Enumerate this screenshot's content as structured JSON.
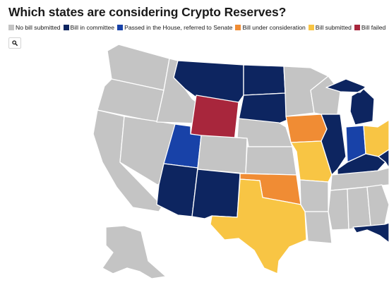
{
  "title": "Which states are considering Crypto Reserves?",
  "legend": [
    {
      "key": "none",
      "label": "No bill submitted",
      "color": "#c4c4c4"
    },
    {
      "key": "committee",
      "label": "Bill in committee",
      "color": "#0d2560"
    },
    {
      "key": "passed_house",
      "label": "Passed in the House, referred to Senate",
      "color": "#1842a8"
    },
    {
      "key": "consideration",
      "label": "Bill under consideration",
      "color": "#f08c34"
    },
    {
      "key": "submitted",
      "label": "Bill submitted",
      "color": "#f8c544"
    },
    {
      "key": "failed",
      "label": "Bill failed",
      "color": "#a8263c"
    }
  ],
  "controls": {
    "zoom_icon": "search-icon"
  },
  "map_data": {
    "states": [
      {
        "state": "Washington",
        "status": "none"
      },
      {
        "state": "Oregon",
        "status": "none"
      },
      {
        "state": "California",
        "status": "none"
      },
      {
        "state": "Nevada",
        "status": "none"
      },
      {
        "state": "Idaho",
        "status": "none"
      },
      {
        "state": "Montana",
        "status": "committee"
      },
      {
        "state": "Wyoming",
        "status": "failed"
      },
      {
        "state": "Utah",
        "status": "passed_house"
      },
      {
        "state": "Arizona",
        "status": "committee"
      },
      {
        "state": "Colorado",
        "status": "none"
      },
      {
        "state": "New Mexico",
        "status": "committee"
      },
      {
        "state": "North Dakota",
        "status": "committee"
      },
      {
        "state": "South Dakota",
        "status": "committee"
      },
      {
        "state": "Nebraska",
        "status": "none"
      },
      {
        "state": "Kansas",
        "status": "none"
      },
      {
        "state": "Oklahoma",
        "status": "consideration"
      },
      {
        "state": "Texas",
        "status": "submitted"
      },
      {
        "state": "Minnesota",
        "status": "none"
      },
      {
        "state": "Iowa",
        "status": "consideration"
      },
      {
        "state": "Missouri",
        "status": "submitted"
      },
      {
        "state": "Arkansas",
        "status": "none"
      },
      {
        "state": "Louisiana",
        "status": "none"
      },
      {
        "state": "Wisconsin",
        "status": "none"
      },
      {
        "state": "Illinois",
        "status": "committee"
      },
      {
        "state": "Michigan",
        "status": "committee"
      },
      {
        "state": "Indiana",
        "status": "passed_house"
      },
      {
        "state": "Ohio",
        "status": "submitted"
      },
      {
        "state": "Kentucky",
        "status": "committee"
      },
      {
        "state": "Tennessee",
        "status": "none"
      },
      {
        "state": "Mississippi",
        "status": "none"
      },
      {
        "state": "Alabama",
        "status": "none"
      },
      {
        "state": "Georgia",
        "status": "none"
      },
      {
        "state": "West Virginia",
        "status": "committee"
      },
      {
        "state": "Florida",
        "status": "committee"
      },
      {
        "state": "Alaska",
        "status": "none"
      }
    ]
  }
}
